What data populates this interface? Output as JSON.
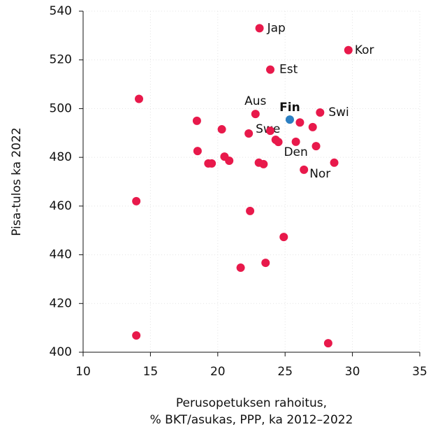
{
  "chart_data": {
    "type": "scatter",
    "x_label": [
      "Perusopetuksen rahoitus,",
      "% BKT/asukas, PPP, ka 2012–2022"
    ],
    "y_label": "Pisa-tulos ka 2022",
    "xlim": [
      10,
      35
    ],
    "xticks": [
      10,
      15,
      20,
      25,
      30,
      35
    ],
    "ylim": [
      400,
      540
    ],
    "yticks": [
      400,
      420,
      440,
      460,
      480,
      500,
      520,
      540
    ],
    "grid": true,
    "series": [
      {
        "color": "#e8194b",
        "x": [
          23.1,
          29.7,
          23.9,
          27.6,
          22.8,
          22.3,
          25.8,
          26.4,
          14.15,
          18.45,
          20.3,
          23.9,
          26.1,
          27.05,
          24.3,
          24.5,
          27.3,
          18.5,
          20.5,
          19.3,
          19.55,
          20.85,
          23.05,
          23.4,
          28.65,
          13.95,
          22.4,
          24.9,
          23.55,
          21.7,
          13.95,
          28.2
        ],
        "y": [
          533,
          524,
          516,
          498.4,
          497.8,
          489.8,
          486.4,
          474.9,
          504,
          495,
          491.5,
          490.9,
          494.3,
          492.4,
          487.2,
          486.3,
          484.6,
          482.6,
          480.3,
          477.5,
          477.5,
          478.6,
          477.8,
          477.2,
          477.8,
          462,
          458,
          447.3,
          436.7,
          434.7,
          406.9,
          403.7
        ],
        "labels": [
          "Jap",
          "Kor",
          "Est",
          "Swi",
          "Aus",
          "Swe",
          "Den",
          "Nor",
          null,
          null,
          null,
          null,
          null,
          null,
          null,
          null,
          null,
          null,
          null,
          null,
          null,
          null,
          null,
          null,
          null,
          null,
          null,
          null,
          null,
          null,
          null,
          null
        ]
      },
      {
        "color": "#2b7fc2",
        "x": [
          25.35
        ],
        "y": [
          495.5
        ],
        "labels": [
          "Fin"
        ]
      }
    ]
  }
}
